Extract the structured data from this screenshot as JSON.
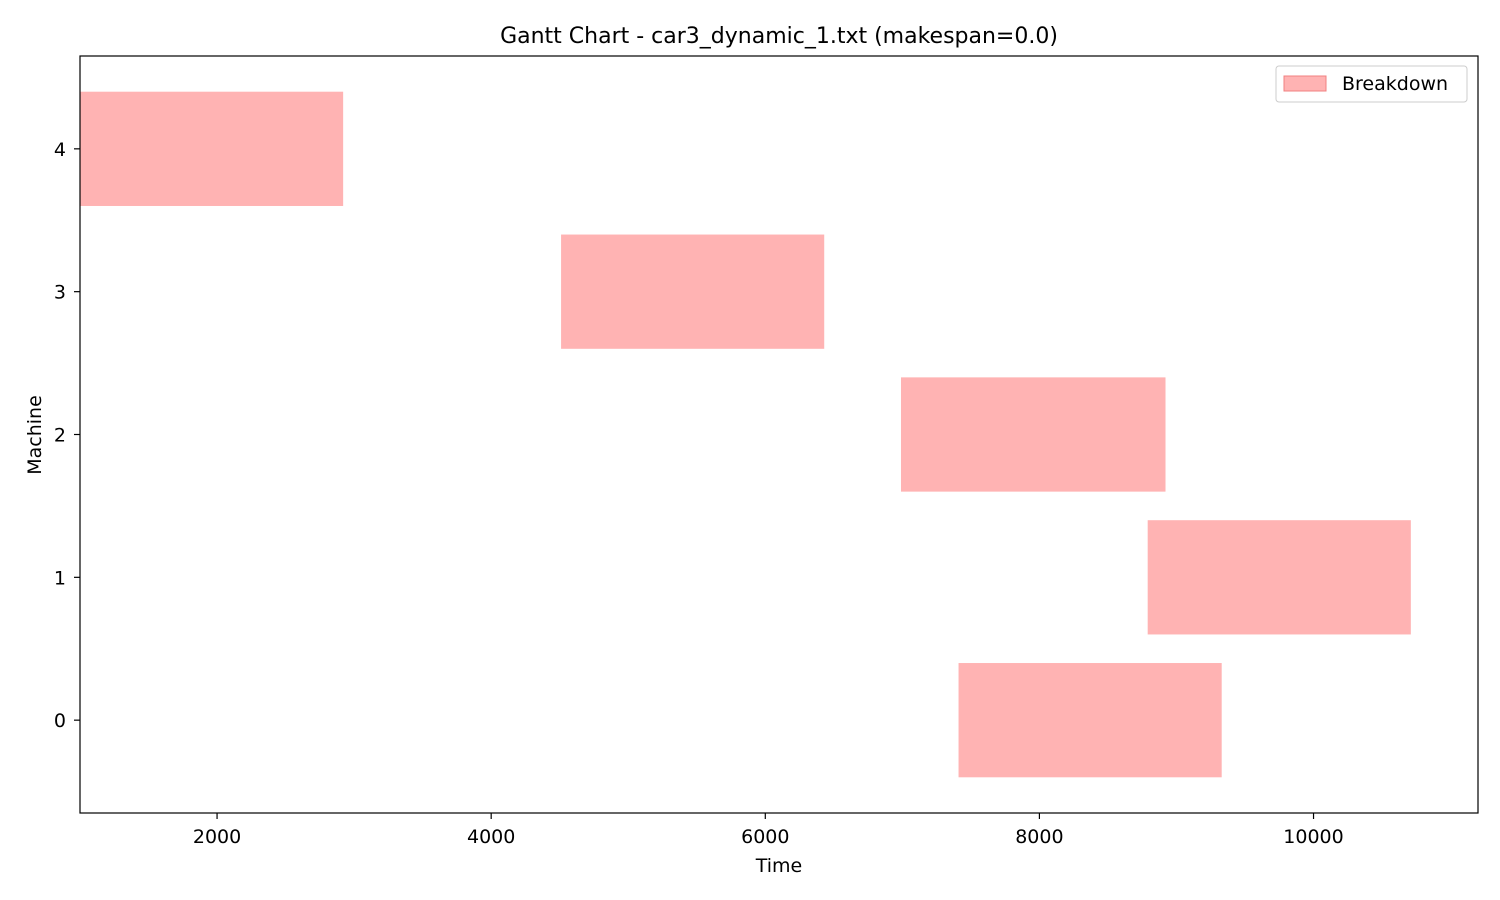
{
  "chart_data": {
    "type": "gantt",
    "title": "Gantt Chart - car3_dynamic_1.txt (makespan=0.0)",
    "xlabel": "Time",
    "ylabel": "Machine",
    "xlim": [
      1000,
      11200
    ],
    "ylim": [
      -0.65,
      4.65
    ],
    "xticks": [
      2000,
      4000,
      6000,
      8000,
      10000
    ],
    "yticks": [
      0,
      1,
      2,
      3,
      4
    ],
    "grid": false,
    "legend": {
      "placement": "top-right",
      "entries": [
        {
          "label": "Breakdown",
          "color": "#ffb3b3"
        }
      ]
    },
    "series": [
      {
        "name": "Breakdown",
        "color": "#ffb3b3",
        "bars": [
          {
            "machine": 4,
            "start": 1000,
            "end": 2920
          },
          {
            "machine": 3,
            "start": 4510,
            "end": 6430
          },
          {
            "machine": 2,
            "start": 6990,
            "end": 8920
          },
          {
            "machine": 1,
            "start": 8790,
            "end": 10710
          },
          {
            "machine": 0,
            "start": 7410,
            "end": 9330
          }
        ]
      }
    ]
  }
}
